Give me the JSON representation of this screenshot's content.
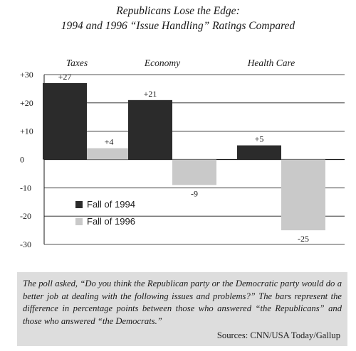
{
  "chart_data": {
    "type": "bar",
    "title": "Republicans Lose the Edge:",
    "subtitle": "1994 and 1996 “Issue Handling” Ratings Compared",
    "categories": [
      "Taxes",
      "Economy",
      "Health Care"
    ],
    "series": [
      {
        "name": "Fall of 1994",
        "values": [
          27,
          21,
          5
        ],
        "color": "#2b2b2b"
      },
      {
        "name": "Fall of 1996",
        "values": [
          4,
          -9,
          -25
        ],
        "color": "#c9c9c9"
      }
    ],
    "data_labels": [
      [
        "+27",
        "+21",
        "+5"
      ],
      [
        "+4",
        "-9",
        "-25"
      ]
    ],
    "ylim": [
      -30,
      30
    ],
    "yticks": [
      30,
      20,
      10,
      0,
      -10,
      -20,
      -30
    ],
    "ytick_labels": [
      "+30",
      "+20",
      "+10",
      "0",
      "-10",
      "-20",
      "-30"
    ],
    "grid": true,
    "legend_position": "lower-left",
    "xlabel": "",
    "ylabel": ""
  },
  "note": {
    "text": "The poll asked, “Do you think the Republican party or the Democratic party would do a better job at dealing with the following issues and problems?” The bars represent the difference in percentage points between those who answered “the Republicans” and those who answered “the Democrats.”",
    "source": "Sources: CNN/USA Today/Gallup"
  }
}
